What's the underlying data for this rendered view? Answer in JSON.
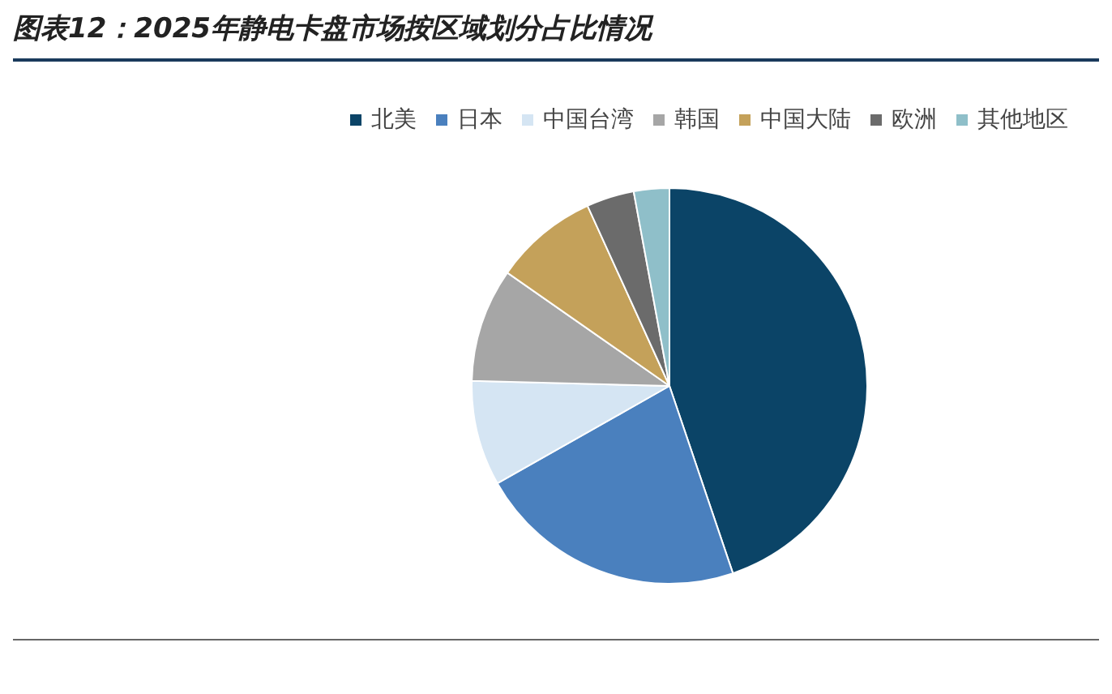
{
  "chart_data": {
    "type": "pie",
    "title": "图表12：2025年静电卡盘市场按区域划分占比情况",
    "categories": [
      "北美",
      "日本",
      "中国台湾",
      "韩国",
      "中国大陆",
      "欧洲",
      "其他地区"
    ],
    "values": [
      44.8,
      22,
      8.6,
      9.3,
      8.5,
      3.9,
      2.9
    ],
    "colors": [
      "#0b4467",
      "#4a80be",
      "#d5e5f3",
      "#a6a6a6",
      "#c4a15a",
      "#6b6b6b",
      "#8fbfc9"
    ],
    "legend": "top right"
  }
}
